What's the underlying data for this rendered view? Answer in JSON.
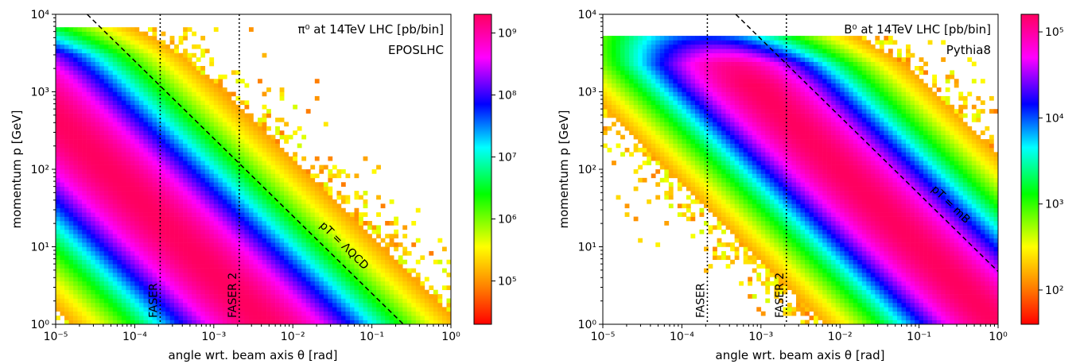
{
  "chart_data": [
    {
      "type": "heatmap",
      "title": "π⁰ at 14TeV LHC [pb/bin]",
      "subtitle": "EPOSLHC",
      "xlabel": "angle wrt. beam axis θ [rad]",
      "ylabel": "momentum p [GeV]",
      "xscale": "log",
      "yscale": "log",
      "xlim": [
        1e-05,
        1
      ],
      "ylim": [
        1,
        10000
      ],
      "x_ticks": [
        "10⁻⁵",
        "10⁻⁴",
        "10⁻³",
        "10⁻²",
        "10⁻¹",
        "10⁰"
      ],
      "y_ticks": [
        "10⁰",
        "10¹",
        "10²",
        "10³",
        "10⁴"
      ],
      "colorbar_ticks": [
        "10⁵",
        "10⁶",
        "10⁷",
        "10⁸",
        "10⁹"
      ],
      "colorbar_range": [
        20000,
        2000000000
      ],
      "peak_momentum": 6500,
      "ridge_pT": 0.0045,
      "ridge_width_decades": 0.95,
      "vertical_lines": [
        {
          "label": "FASER",
          "theta": 0.00021
        },
        {
          "label": "FASER 2",
          "theta": 0.0021
        }
      ],
      "diagonal_line": {
        "label": "pT = ΛQCD",
        "pT": 0.25
      }
    },
    {
      "type": "heatmap",
      "title": "B⁰ at 14TeV LHC [pb/bin]",
      "subtitle": "Pythia8",
      "xlabel": "angle wrt. beam axis θ [rad]",
      "ylabel": "momentum p [GeV]",
      "xscale": "log",
      "yscale": "log",
      "xlim": [
        1e-05,
        1
      ],
      "ylim": [
        1,
        10000
      ],
      "x_ticks": [
        "10⁻⁵",
        "10⁻⁴",
        "10⁻³",
        "10⁻²",
        "10⁻¹",
        "10⁰"
      ],
      "y_ticks": [
        "10⁰",
        "10¹",
        "10²",
        "10³",
        "10⁴"
      ],
      "colorbar_ticks": [
        "10²",
        "10³",
        "10⁴",
        "10⁵"
      ],
      "colorbar_range": [
        40,
        160000
      ],
      "peak_momentum": 5000,
      "ridge_pT": 1.0,
      "ridge_width_decades": 0.85,
      "vertical_lines": [
        {
          "label": "FASER",
          "theta": 0.00021
        },
        {
          "label": "FASER 2",
          "theta": 0.0021
        }
      ],
      "diagonal_line": {
        "label": "pT = mB",
        "pT": 4.8
      }
    }
  ],
  "colormap": [
    "#ff0000",
    "#ff8000",
    "#ffff00",
    "#00ff00",
    "#00ffff",
    "#0000ff",
    "#ff00ff",
    "#ff0060"
  ]
}
